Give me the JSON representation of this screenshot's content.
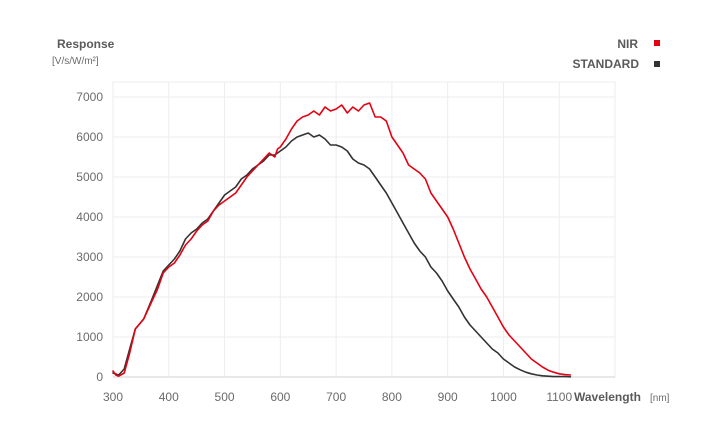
{
  "chart_data": {
    "type": "line",
    "ylabel": "Response",
    "yunit": "[V/s/W/m²]",
    "xlabel": "Wavelength",
    "xunit": "[nm]",
    "xlim": [
      300,
      1200
    ],
    "ylim": [
      0,
      7000
    ],
    "xticks": [
      300,
      400,
      500,
      600,
      700,
      800,
      900,
      1000,
      1100
    ],
    "yticks": [
      0,
      1000,
      2000,
      3000,
      4000,
      5000,
      6000,
      7000
    ],
    "grid": true,
    "legend_position": "top-right",
    "series": [
      {
        "name": "NIR",
        "color": "#e50012",
        "points": [
          [
            300,
            150
          ],
          [
            305,
            50
          ],
          [
            310,
            20
          ],
          [
            320,
            100
          ],
          [
            330,
            600
          ],
          [
            340,
            1200
          ],
          [
            355,
            1450
          ],
          [
            370,
            1900
          ],
          [
            380,
            2200
          ],
          [
            390,
            2600
          ],
          [
            400,
            2750
          ],
          [
            410,
            2850
          ],
          [
            420,
            3050
          ],
          [
            430,
            3300
          ],
          [
            440,
            3450
          ],
          [
            450,
            3650
          ],
          [
            460,
            3800
          ],
          [
            470,
            3900
          ],
          [
            480,
            4150
          ],
          [
            490,
            4300
          ],
          [
            500,
            4400
          ],
          [
            510,
            4500
          ],
          [
            520,
            4600
          ],
          [
            530,
            4800
          ],
          [
            540,
            5000
          ],
          [
            550,
            5150
          ],
          [
            560,
            5300
          ],
          [
            570,
            5450
          ],
          [
            580,
            5600
          ],
          [
            590,
            5500
          ],
          [
            595,
            5700
          ],
          [
            600,
            5750
          ],
          [
            610,
            5950
          ],
          [
            620,
            6200
          ],
          [
            630,
            6400
          ],
          [
            640,
            6500
          ],
          [
            650,
            6550
          ],
          [
            660,
            6650
          ],
          [
            670,
            6550
          ],
          [
            680,
            6750
          ],
          [
            690,
            6650
          ],
          [
            700,
            6700
          ],
          [
            710,
            6800
          ],
          [
            720,
            6600
          ],
          [
            730,
            6750
          ],
          [
            740,
            6650
          ],
          [
            750,
            6800
          ],
          [
            760,
            6850
          ],
          [
            770,
            6500
          ],
          [
            780,
            6500
          ],
          [
            790,
            6400
          ],
          [
            800,
            6000
          ],
          [
            810,
            5800
          ],
          [
            820,
            5600
          ],
          [
            830,
            5300
          ],
          [
            840,
            5200
          ],
          [
            850,
            5100
          ],
          [
            860,
            4950
          ],
          [
            870,
            4600
          ],
          [
            880,
            4400
          ],
          [
            890,
            4200
          ],
          [
            900,
            4000
          ],
          [
            910,
            3700
          ],
          [
            920,
            3350
          ],
          [
            930,
            3000
          ],
          [
            940,
            2700
          ],
          [
            950,
            2450
          ],
          [
            960,
            2200
          ],
          [
            970,
            2000
          ],
          [
            980,
            1750
          ],
          [
            990,
            1500
          ],
          [
            1000,
            1250
          ],
          [
            1010,
            1050
          ],
          [
            1020,
            900
          ],
          [
            1030,
            750
          ],
          [
            1040,
            600
          ],
          [
            1050,
            450
          ],
          [
            1060,
            350
          ],
          [
            1070,
            250
          ],
          [
            1080,
            170
          ],
          [
            1090,
            120
          ],
          [
            1100,
            80
          ],
          [
            1110,
            60
          ],
          [
            1120,
            50
          ]
        ]
      },
      {
        "name": "STANDARD",
        "color": "#333333",
        "points": [
          [
            300,
            100
          ],
          [
            310,
            50
          ],
          [
            320,
            200
          ],
          [
            330,
            700
          ],
          [
            340,
            1200
          ],
          [
            355,
            1450
          ],
          [
            370,
            1950
          ],
          [
            380,
            2300
          ],
          [
            390,
            2650
          ],
          [
            400,
            2800
          ],
          [
            410,
            2950
          ],
          [
            420,
            3150
          ],
          [
            430,
            3450
          ],
          [
            440,
            3600
          ],
          [
            450,
            3700
          ],
          [
            460,
            3850
          ],
          [
            470,
            3950
          ],
          [
            480,
            4150
          ],
          [
            490,
            4350
          ],
          [
            500,
            4550
          ],
          [
            510,
            4650
          ],
          [
            520,
            4750
          ],
          [
            530,
            4950
          ],
          [
            540,
            5050
          ],
          [
            550,
            5200
          ],
          [
            560,
            5300
          ],
          [
            570,
            5400
          ],
          [
            580,
            5550
          ],
          [
            590,
            5550
          ],
          [
            600,
            5650
          ],
          [
            610,
            5750
          ],
          [
            620,
            5900
          ],
          [
            630,
            6000
          ],
          [
            640,
            6050
          ],
          [
            650,
            6100
          ],
          [
            660,
            6000
          ],
          [
            670,
            6050
          ],
          [
            680,
            5950
          ],
          [
            690,
            5800
          ],
          [
            700,
            5800
          ],
          [
            710,
            5750
          ],
          [
            720,
            5650
          ],
          [
            730,
            5450
          ],
          [
            740,
            5350
          ],
          [
            750,
            5300
          ],
          [
            760,
            5200
          ],
          [
            770,
            5000
          ],
          [
            780,
            4800
          ],
          [
            790,
            4600
          ],
          [
            800,
            4350
          ],
          [
            810,
            4100
          ],
          [
            820,
            3850
          ],
          [
            830,
            3600
          ],
          [
            840,
            3350
          ],
          [
            850,
            3150
          ],
          [
            860,
            3000
          ],
          [
            870,
            2750
          ],
          [
            880,
            2600
          ],
          [
            890,
            2400
          ],
          [
            900,
            2150
          ],
          [
            910,
            1950
          ],
          [
            920,
            1750
          ],
          [
            930,
            1500
          ],
          [
            940,
            1300
          ],
          [
            950,
            1150
          ],
          [
            960,
            1000
          ],
          [
            970,
            850
          ],
          [
            980,
            700
          ],
          [
            990,
            600
          ],
          [
            1000,
            450
          ],
          [
            1010,
            350
          ],
          [
            1020,
            250
          ],
          [
            1030,
            180
          ],
          [
            1040,
            120
          ],
          [
            1050,
            80
          ],
          [
            1060,
            50
          ],
          [
            1070,
            30
          ],
          [
            1080,
            20
          ],
          [
            1090,
            10
          ],
          [
            1100,
            10
          ],
          [
            1110,
            10
          ],
          [
            1120,
            5
          ]
        ]
      }
    ]
  }
}
